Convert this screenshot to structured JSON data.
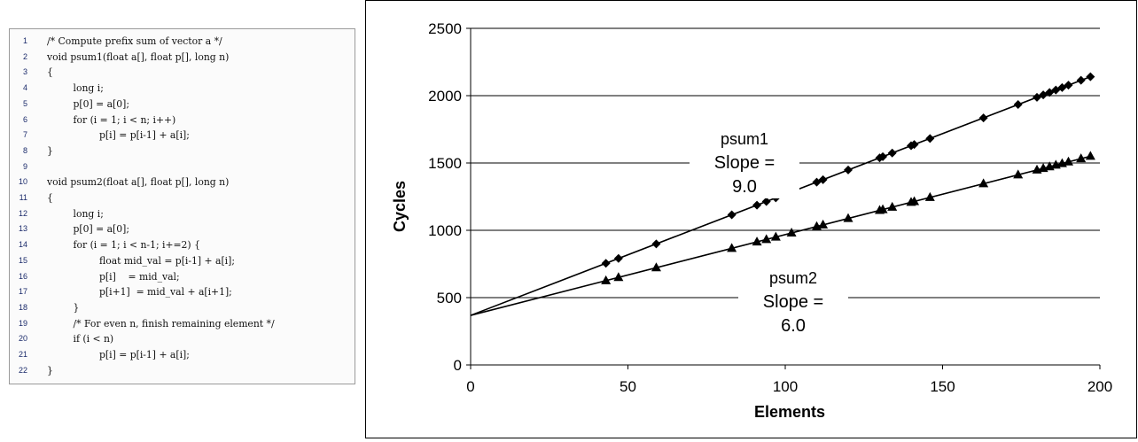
{
  "code": {
    "lines": [
      {
        "n": "1",
        "text": "/* Compute prefix sum of vector a */",
        "indent": 0
      },
      {
        "n": "2",
        "text": "void psum1(float a[], float p[], long n)",
        "indent": 0
      },
      {
        "n": "3",
        "text": "{",
        "indent": 0
      },
      {
        "n": "4",
        "text": "long i;",
        "indent": 1
      },
      {
        "n": "5",
        "text": "p[0] = a[0];",
        "indent": 1
      },
      {
        "n": "6",
        "text": "for (i = 1; i < n; i++)",
        "indent": 1
      },
      {
        "n": "7",
        "text": "p[i] = p[i-1] + a[i];",
        "indent": 2
      },
      {
        "n": "8",
        "text": "}",
        "indent": 0
      },
      {
        "n": "9",
        "text": "",
        "indent": 0
      },
      {
        "n": "10",
        "text": "void psum2(float a[], float p[], long n)",
        "indent": 0
      },
      {
        "n": "11",
        "text": "{",
        "indent": 0
      },
      {
        "n": "12",
        "text": "long i;",
        "indent": 1
      },
      {
        "n": "13",
        "text": "p[0] = a[0];",
        "indent": 1
      },
      {
        "n": "14",
        "text": "for (i = 1; i < n-1; i+=2) {",
        "indent": 1
      },
      {
        "n": "15",
        "text": "float mid_val = p[i-1] + a[i];",
        "indent": 2
      },
      {
        "n": "16",
        "text": "p[i]    = mid_val;",
        "indent": 2
      },
      {
        "n": "17",
        "text": "p[i+1]  = mid_val + a[i+1];",
        "indent": 2
      },
      {
        "n": "18",
        "text": "}",
        "indent": 1
      },
      {
        "n": "19",
        "text": "/* For even n, finish remaining element */",
        "indent": 1
      },
      {
        "n": "20",
        "text": "if (i < n)",
        "indent": 1
      },
      {
        "n": "21",
        "text": "p[i] = p[i-1] + a[i];",
        "indent": 2
      },
      {
        "n": "22",
        "text": "}",
        "indent": 0
      }
    ]
  },
  "chart_data": {
    "type": "line",
    "xlabel": "Elements",
    "ylabel": "Cycles",
    "xlim": [
      0,
      200
    ],
    "ylim": [
      0,
      2500
    ],
    "xticks": [
      0,
      50,
      100,
      150,
      200
    ],
    "yticks": [
      0,
      500,
      1000,
      1500,
      2000,
      2500
    ],
    "grid": "horizontal",
    "series": [
      {
        "key": "psum1",
        "marker": "diamond",
        "intercept": 368,
        "slope": 9.0,
        "x": [
          43,
          47,
          59,
          83,
          91,
          94,
          97,
          102,
          110,
          112,
          120,
          130,
          131,
          134,
          140,
          141,
          146,
          163,
          174,
          180,
          182,
          184,
          186,
          188,
          190,
          194,
          197
        ],
        "y": [
          755,
          791,
          899,
          1115,
          1187,
          1214,
          1241,
          1286,
          1358,
          1376,
          1448,
          1538,
          1547,
          1574,
          1628,
          1637,
          1682,
          1835,
          1934,
          1988,
          2006,
          2024,
          2042,
          2060,
          2078,
          2114,
          2141
        ]
      },
      {
        "key": "psum2",
        "marker": "triangle",
        "intercept": 368,
        "slope": 6.0,
        "x": [
          43,
          47,
          59,
          83,
          91,
          94,
          97,
          102,
          110,
          112,
          120,
          130,
          131,
          134,
          140,
          141,
          146,
          163,
          174,
          180,
          182,
          184,
          186,
          188,
          190,
          194,
          197
        ],
        "y": [
          626,
          650,
          722,
          866,
          914,
          932,
          950,
          980,
          1028,
          1040,
          1088,
          1148,
          1154,
          1172,
          1208,
          1214,
          1244,
          1346,
          1412,
          1448,
          1460,
          1472,
          1484,
          1496,
          1508,
          1532,
          1550
        ]
      }
    ],
    "annotations": [
      {
        "key": "psum1",
        "name": "psum1",
        "slope_label": "Slope =",
        "slope_value": "9.0"
      },
      {
        "key": "psum2",
        "name": "psum2",
        "slope_label": "Slope =",
        "slope_value": "6.0"
      }
    ]
  }
}
